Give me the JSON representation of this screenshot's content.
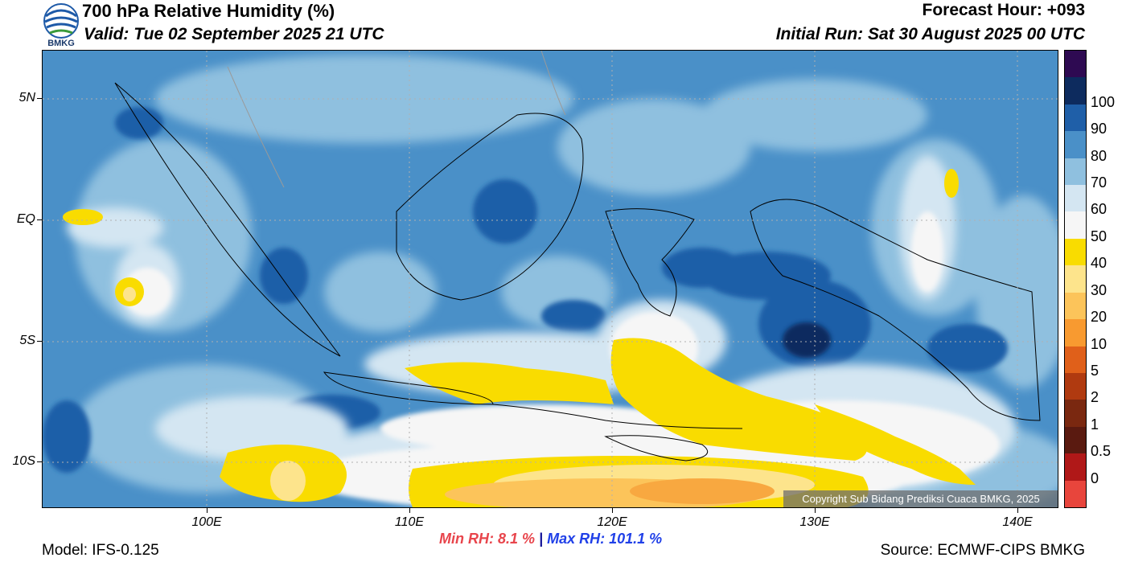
{
  "header": {
    "title": "700 hPa Relative Humidity (%)",
    "valid": "Valid: Tue 02 September 2025 21 UTC",
    "forecast_hour": "Forecast Hour: +093",
    "initial_run": "Initial Run: Sat 30 August 2025 00 UTC",
    "logo_text": "BMKG"
  },
  "axes": {
    "lat_labels": [
      "5N",
      "EQ",
      "5S",
      "10S"
    ],
    "lon_labels": [
      "100E",
      "110E",
      "120E",
      "130E",
      "140E"
    ]
  },
  "colorbar": {
    "labels": [
      "100",
      "90",
      "80",
      "70",
      "60",
      "50",
      "40",
      "30",
      "20",
      "10",
      "5",
      "2",
      "1",
      "0.5",
      "0"
    ],
    "colors": [
      "#2e0a52",
      "#0d2b5e",
      "#1f5fa8",
      "#4a90c8",
      "#8fc0df",
      "#d4e6f2",
      "#f6f6f6",
      "#f9dc00",
      "#fde48c",
      "#fcc45a",
      "#f89a30",
      "#e0601a",
      "#b03a10",
      "#7a2810",
      "#5a1a10",
      "#b01818",
      "#e8453c"
    ]
  },
  "stats": {
    "min_label": "Min RH:",
    "min_value": "8.1 %",
    "separator": "|",
    "max_label": "Max RH:",
    "max_value": "101.1 %"
  },
  "footer": {
    "model": "Model: IFS-0.125",
    "source": "Source: ECMWF-CIPS BMKG",
    "copyright": "Copyright Sub Bidang Prediksi Cuaca BMKG, 2025"
  }
}
